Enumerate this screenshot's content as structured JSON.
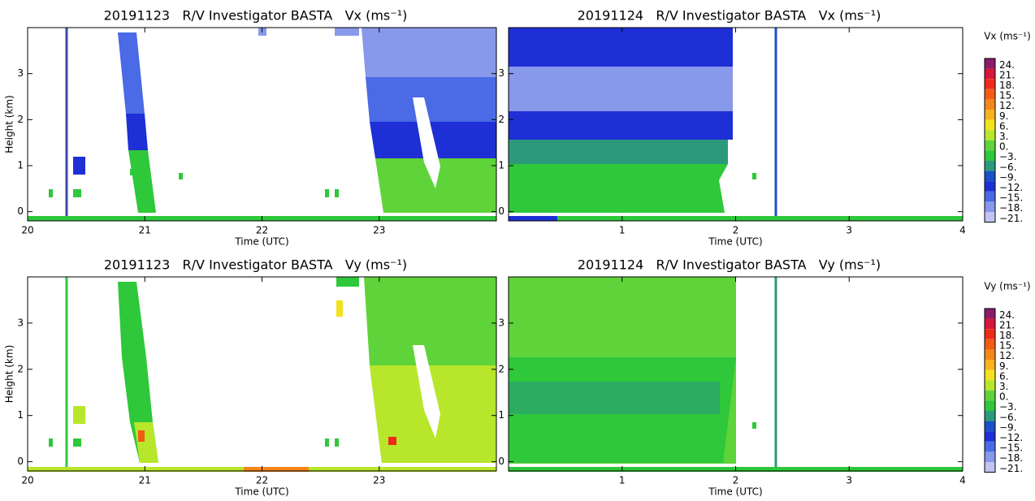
{
  "chart_data": [
    {
      "type": "heatmap",
      "title": "20191123   R/V Investigator BASTA   Vx (ms⁻¹)",
      "x_label": "Time (UTC)",
      "y_label": "Height (km)",
      "xlim": [
        20,
        24
      ],
      "xticks": [
        20,
        21,
        22,
        23
      ],
      "ylim": [
        -0.2,
        4
      ],
      "yticks": [
        0,
        1,
        2,
        3
      ]
    },
    {
      "type": "heatmap",
      "title": "20191124   R/V Investigator BASTA   Vx (ms⁻¹)",
      "x_label": "Time (UTC)",
      "xlim": [
        0,
        4
      ],
      "xticks": [
        1,
        2,
        3,
        4
      ],
      "ylim": [
        -0.2,
        4
      ],
      "yticks": [
        0,
        1,
        2,
        3
      ]
    },
    {
      "type": "heatmap",
      "title": "20191123   R/V Investigator BASTA   Vy (ms⁻¹)",
      "x_label": "Time (UTC)",
      "y_label": "Height (km)",
      "xlim": [
        20,
        24
      ],
      "xticks": [
        20,
        21,
        22,
        23
      ],
      "ylim": [
        -0.2,
        4
      ],
      "yticks": [
        0,
        1,
        2,
        3
      ]
    },
    {
      "type": "heatmap",
      "title": "20191124   R/V Investigator BASTA   Vy (ms⁻¹)",
      "x_label": "Time (UTC)",
      "xlim": [
        0,
        4
      ],
      "xticks": [
        1,
        2,
        3,
        4
      ],
      "ylim": [
        -0.2,
        4
      ],
      "yticks": [
        0,
        1,
        2,
        3
      ]
    }
  ],
  "colorbars": [
    {
      "label": "Vx (ms⁻¹)",
      "ticks": [
        {
          "value": 24,
          "label": "24."
        },
        {
          "value": 21,
          "label": "21."
        },
        {
          "value": 18,
          "label": "18."
        },
        {
          "value": 15,
          "label": "15."
        },
        {
          "value": 12,
          "label": "12."
        },
        {
          "value": 9,
          "label": "9."
        },
        {
          "value": 6,
          "label": "6."
        },
        {
          "value": 3,
          "label": "3."
        },
        {
          "value": 0,
          "label": "0."
        },
        {
          "value": -3,
          "label": "−3."
        },
        {
          "value": -6,
          "label": "−6."
        },
        {
          "value": -9,
          "label": "−9."
        },
        {
          "value": -12,
          "label": "−12."
        },
        {
          "value": -15,
          "label": "−15."
        },
        {
          "value": -18,
          "label": "−18."
        },
        {
          "value": -21,
          "label": "−21."
        }
      ],
      "colors": [
        "#8a1c6a",
        "#d6163a",
        "#f02a1a",
        "#f25c14",
        "#f5871a",
        "#f7b21e",
        "#f2e21e",
        "#b7e62a",
        "#5fd33a",
        "#2ec83a",
        "#2a9a7a",
        "#1a50c8",
        "#1e2fd6",
        "#4a6ae6",
        "#8898ea",
        "#c0c4f0"
      ]
    },
    {
      "label": "Vy (ms⁻¹)",
      "ticks": [
        {
          "value": 24,
          "label": "24."
        },
        {
          "value": 21,
          "label": "21."
        },
        {
          "value": 18,
          "label": "18."
        },
        {
          "value": 15,
          "label": "15."
        },
        {
          "value": 12,
          "label": "12."
        },
        {
          "value": 9,
          "label": "9."
        },
        {
          "value": 6,
          "label": "6."
        },
        {
          "value": 3,
          "label": "3."
        },
        {
          "value": 0,
          "label": "0."
        },
        {
          "value": -3,
          "label": "−3."
        },
        {
          "value": -6,
          "label": "−6."
        },
        {
          "value": -9,
          "label": "−9."
        },
        {
          "value": -12,
          "label": "−12."
        },
        {
          "value": -15,
          "label": "−15."
        },
        {
          "value": -18,
          "label": "−18."
        },
        {
          "value": -21,
          "label": "−21."
        }
      ],
      "colors": [
        "#8a1c6a",
        "#d6163a",
        "#f02a1a",
        "#f25c14",
        "#f5871a",
        "#f7b21e",
        "#f2e21e",
        "#b7e62a",
        "#5fd33a",
        "#2ec83a",
        "#2a9a7a",
        "#1a50c8",
        "#1e2fd6",
        "#4a6ae6",
        "#8898ea",
        "#c0c4f0"
      ]
    }
  ]
}
